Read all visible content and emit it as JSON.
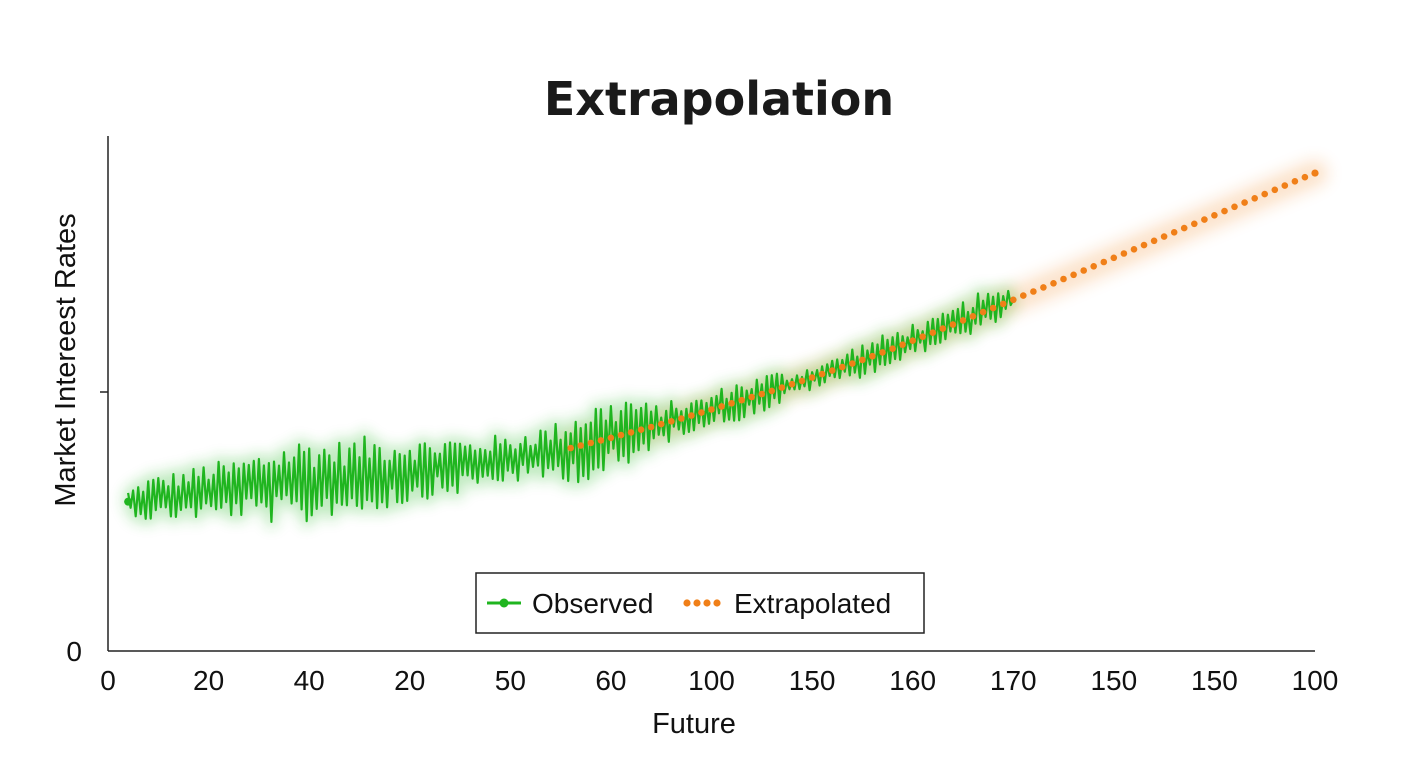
{
  "chart_data": {
    "type": "line",
    "title": "Extrapolation",
    "xlabel": "Future",
    "ylabel": "Market Intereest Rates",
    "x_ticks": [
      "0",
      "20",
      "40",
      "20",
      "50",
      "60",
      "100",
      "150",
      "160",
      "170",
      "150",
      "150",
      "100"
    ],
    "y_ticks": [
      "0",
      ""
    ],
    "x_range": [
      0,
      12
    ],
    "ylim": [
      0,
      100
    ],
    "grid": false,
    "legend_position": "bottom-center",
    "series": [
      {
        "name": "Observed",
        "color": "#1fb51f",
        "style": "solid-noisy",
        "x": [
          0.2,
          0.4,
          0.6,
          0.8,
          1.0,
          1.2,
          1.4,
          1.6,
          1.8,
          2.0,
          2.2,
          2.4,
          2.6,
          2.8,
          3.0,
          3.2,
          3.4,
          3.6,
          3.8,
          4.0,
          4.2,
          4.4,
          4.6,
          4.8,
          5.0,
          5.2,
          5.4,
          5.6,
          5.8,
          6.0,
          6.2,
          6.4,
          6.6,
          6.8,
          7.0,
          7.2,
          7.4,
          7.6,
          7.8,
          8.0,
          8.2,
          8.4,
          8.6,
          8.8,
          9.0
        ],
        "values": [
          29.0,
          29.5,
          30.0,
          30.5,
          31.0,
          31.4,
          31.8,
          32.2,
          32.6,
          33.0,
          33.4,
          33.8,
          34.2,
          34.6,
          35.0,
          35.4,
          35.8,
          36.3,
          36.8,
          37.3,
          37.8,
          38.5,
          39.4,
          40.4,
          41.4,
          42.4,
          43.5,
          44.6,
          45.7,
          46.9,
          48.1,
          49.3,
          50.5,
          51.8,
          53.1,
          54.4,
          55.8,
          57.2,
          58.7,
          60.2,
          61.8,
          63.4,
          65.0,
          66.6,
          68.2
        ],
        "noise": [
          1.8,
          3.5,
          3.7,
          3.8,
          4.6,
          4.4,
          4.9,
          5.9,
          6.6,
          7.0,
          5.8,
          5.9,
          6.1,
          5.5,
          5.4,
          4.5,
          4.9,
          3.8,
          4.2,
          3.4,
          4.6,
          4.3,
          5.2,
          6.5,
          5.9,
          6.3,
          3.3,
          3.2,
          2.4,
          2.5,
          3.3,
          2.8,
          3.1,
          1.7,
          2.0,
          1.8,
          2.6,
          2.7,
          2.7,
          2.8,
          2.2,
          2.5,
          3.5,
          2.4,
          2.0
        ]
      },
      {
        "name": "Extrapolated",
        "color": "#f07f18",
        "style": "dotted",
        "x": [
          4.6,
          5.0,
          5.4,
          5.8,
          6.2,
          6.6,
          7.0,
          7.4,
          7.8,
          8.2,
          8.6,
          9.0,
          9.4,
          9.8,
          10.2,
          10.6,
          11.0,
          11.4,
          11.8,
          12.0
        ],
        "values": [
          39.4,
          41.4,
          43.5,
          45.7,
          48.1,
          50.5,
          53.1,
          55.8,
          58.7,
          61.8,
          65.0,
          68.2,
          71.4,
          74.7,
          78.0,
          81.3,
          84.6,
          87.9,
          91.2,
          92.8
        ]
      }
    ]
  },
  "legend": {
    "observed_label": "Observed",
    "extrapolated_label": "Extrapolated"
  }
}
